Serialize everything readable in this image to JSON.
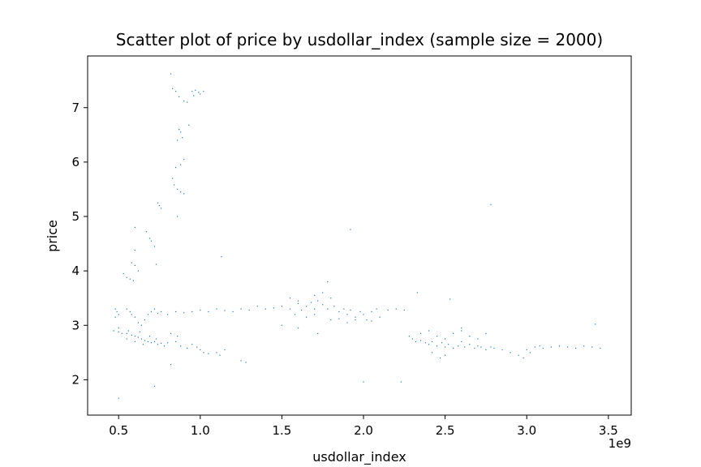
{
  "chart_data": {
    "type": "scatter",
    "title": "Scatter plot of price by usdollar_index (sample size = 2000)",
    "xlabel": "usdollar_index",
    "ylabel": "price",
    "x_scale_label": "1e9",
    "xlim": [
      0.31,
      3.64
    ],
    "ylim": [
      1.35,
      7.95
    ],
    "x_ticks": [
      0.5,
      1.0,
      1.5,
      2.0,
      2.5,
      3.0,
      3.5
    ],
    "x_tick_labels": [
      "0.5",
      "1.0",
      "1.5",
      "2.0",
      "2.5",
      "3.0",
      "3.5"
    ],
    "y_ticks": [
      2,
      3,
      4,
      5,
      6,
      7
    ],
    "y_tick_labels": [
      "2",
      "3",
      "4",
      "5",
      "6",
      "7"
    ],
    "grid": false,
    "point_color": "#1f77b4",
    "x_unit_note": "x values are in units of 1e9 (as the axis offset label shows)",
    "points": [
      [
        0.82,
        7.62
      ],
      [
        0.83,
        7.35
      ],
      [
        0.85,
        7.3
      ],
      [
        0.87,
        7.2
      ],
      [
        0.9,
        7.12
      ],
      [
        0.92,
        7.1
      ],
      [
        0.95,
        7.3
      ],
      [
        0.97,
        7.32
      ],
      [
        0.99,
        7.28
      ],
      [
        1.0,
        7.25
      ],
      [
        1.02,
        7.3
      ],
      [
        0.96,
        7.22
      ],
      [
        0.93,
        6.68
      ],
      [
        0.87,
        6.6
      ],
      [
        0.88,
        6.55
      ],
      [
        0.89,
        6.45
      ],
      [
        0.86,
        6.4
      ],
      [
        0.9,
        6.05
      ],
      [
        0.88,
        5.95
      ],
      [
        0.85,
        5.9
      ],
      [
        0.83,
        5.7
      ],
      [
        0.84,
        5.58
      ],
      [
        0.86,
        5.5
      ],
      [
        0.88,
        5.45
      ],
      [
        0.9,
        5.42
      ],
      [
        0.74,
        5.25
      ],
      [
        0.75,
        5.2
      ],
      [
        0.76,
        5.15
      ],
      [
        0.86,
        5.0
      ],
      [
        0.6,
        4.8
      ],
      [
        0.67,
        4.72
      ],
      [
        0.69,
        4.6
      ],
      [
        0.7,
        4.55
      ],
      [
        0.72,
        4.45
      ],
      [
        0.6,
        4.38
      ],
      [
        0.58,
        4.15
      ],
      [
        0.6,
        4.1
      ],
      [
        0.62,
        4.0
      ],
      [
        0.53,
        3.95
      ],
      [
        0.55,
        3.88
      ],
      [
        0.57,
        3.85
      ],
      [
        0.59,
        3.82
      ],
      [
        0.73,
        4.12
      ],
      [
        1.13,
        4.26
      ],
      [
        1.92,
        4.76
      ],
      [
        2.78,
        5.22
      ],
      [
        2.33,
        3.6
      ],
      [
        2.53,
        3.48
      ],
      [
        0.48,
        3.3
      ],
      [
        0.49,
        3.25
      ],
      [
        0.5,
        3.2
      ],
      [
        0.48,
        3.15
      ],
      [
        0.55,
        3.3
      ],
      [
        0.57,
        3.25
      ],
      [
        0.58,
        3.2
      ],
      [
        0.6,
        3.15
      ],
      [
        0.62,
        3.05
      ],
      [
        0.64,
        3.0
      ],
      [
        0.66,
        3.1
      ],
      [
        0.68,
        3.2
      ],
      [
        0.7,
        3.25
      ],
      [
        0.72,
        3.3
      ],
      [
        0.74,
        3.22
      ],
      [
        0.76,
        3.25
      ],
      [
        0.8,
        3.2
      ],
      [
        0.85,
        3.25
      ],
      [
        0.9,
        3.23
      ],
      [
        0.95,
        3.25
      ],
      [
        1.0,
        3.28
      ],
      [
        1.05,
        3.25
      ],
      [
        1.1,
        3.3
      ],
      [
        1.15,
        3.27
      ],
      [
        1.2,
        3.25
      ],
      [
        1.25,
        3.3
      ],
      [
        1.3,
        3.28
      ],
      [
        1.35,
        3.35
      ],
      [
        1.4,
        3.3
      ],
      [
        1.45,
        3.32
      ],
      [
        1.5,
        3.35
      ],
      [
        1.55,
        3.3
      ],
      [
        1.6,
        3.4
      ],
      [
        1.62,
        3.28
      ],
      [
        1.65,
        3.35
      ],
      [
        1.68,
        3.42
      ],
      [
        1.7,
        3.3
      ],
      [
        1.72,
        3.45
      ],
      [
        1.75,
        3.38
      ],
      [
        1.78,
        3.3
      ],
      [
        1.8,
        3.5
      ],
      [
        1.82,
        3.35
      ],
      [
        1.85,
        3.25
      ],
      [
        1.88,
        3.3
      ],
      [
        1.9,
        3.2
      ],
      [
        1.92,
        3.28
      ],
      [
        1.95,
        3.15
      ],
      [
        1.98,
        3.25
      ],
      [
        2.0,
        3.2
      ],
      [
        2.02,
        3.1
      ],
      [
        2.05,
        3.25
      ],
      [
        2.08,
        3.3
      ],
      [
        2.1,
        3.15
      ],
      [
        2.15,
        3.28
      ],
      [
        2.2,
        3.3
      ],
      [
        2.25,
        3.28
      ],
      [
        1.55,
        3.5
      ],
      [
        1.6,
        3.45
      ],
      [
        1.7,
        3.55
      ],
      [
        1.75,
        3.6
      ],
      [
        1.65,
        3.15
      ],
      [
        1.7,
        3.2
      ],
      [
        1.8,
        3.1
      ],
      [
        1.85,
        3.12
      ],
      [
        1.9,
        3.05
      ],
      [
        1.95,
        3.1
      ],
      [
        2.05,
        3.08
      ],
      [
        1.58,
        3.2
      ],
      [
        1.5,
        3.0
      ],
      [
        1.6,
        2.95
      ],
      [
        1.72,
        2.85
      ],
      [
        1.78,
        3.8
      ],
      [
        0.47,
        2.9
      ],
      [
        0.5,
        2.88
      ],
      [
        0.52,
        2.85
      ],
      [
        0.55,
        2.85
      ],
      [
        0.58,
        2.82
      ],
      [
        0.6,
        2.8
      ],
      [
        0.62,
        2.78
      ],
      [
        0.64,
        2.75
      ],
      [
        0.66,
        2.72
      ],
      [
        0.68,
        2.7
      ],
      [
        0.7,
        2.68
      ],
      [
        0.72,
        2.7
      ],
      [
        0.74,
        2.65
      ],
      [
        0.76,
        2.67
      ],
      [
        0.78,
        2.62
      ],
      [
        0.55,
        2.75
      ],
      [
        0.6,
        2.7
      ],
      [
        0.65,
        2.65
      ],
      [
        0.5,
        2.95
      ],
      [
        0.56,
        2.9
      ],
      [
        0.63,
        2.88
      ],
      [
        0.69,
        2.8
      ],
      [
        0.73,
        2.75
      ],
      [
        0.8,
        2.68
      ],
      [
        0.85,
        2.7
      ],
      [
        0.88,
        2.62
      ],
      [
        0.92,
        2.58
      ],
      [
        0.95,
        2.65
      ],
      [
        0.98,
        2.6
      ],
      [
        1.0,
        2.55
      ],
      [
        1.02,
        2.5
      ],
      [
        1.05,
        2.48
      ],
      [
        0.82,
        2.85
      ],
      [
        0.86,
        2.8
      ],
      [
        1.1,
        2.5
      ],
      [
        1.12,
        2.45
      ],
      [
        1.15,
        2.55
      ],
      [
        1.25,
        2.35
      ],
      [
        1.28,
        2.32
      ],
      [
        0.82,
        2.28
      ],
      [
        0.72,
        1.88
      ],
      [
        0.5,
        1.66
      ],
      [
        2.0,
        1.96
      ],
      [
        2.23,
        1.96
      ],
      [
        2.28,
        2.8
      ],
      [
        2.3,
        2.75
      ],
      [
        2.32,
        2.7
      ],
      [
        2.35,
        2.72
      ],
      [
        2.38,
        2.68
      ],
      [
        2.4,
        2.65
      ],
      [
        2.42,
        2.7
      ],
      [
        2.45,
        2.62
      ],
      [
        2.48,
        2.68
      ],
      [
        2.5,
        2.6
      ],
      [
        2.52,
        2.65
      ],
      [
        2.55,
        2.58
      ],
      [
        2.58,
        2.62
      ],
      [
        2.6,
        2.7
      ],
      [
        2.62,
        2.6
      ],
      [
        2.65,
        2.65
      ],
      [
        2.68,
        2.58
      ],
      [
        2.7,
        2.62
      ],
      [
        2.72,
        2.6
      ],
      [
        2.75,
        2.55
      ],
      [
        2.78,
        2.6
      ],
      [
        2.8,
        2.58
      ],
      [
        2.35,
        2.85
      ],
      [
        2.4,
        2.9
      ],
      [
        2.45,
        2.8
      ],
      [
        2.5,
        2.75
      ],
      [
        2.55,
        2.85
      ],
      [
        2.6,
        2.9
      ],
      [
        2.65,
        2.8
      ],
      [
        2.7,
        2.75
      ],
      [
        2.75,
        2.85
      ],
      [
        2.6,
        2.95
      ],
      [
        2.42,
        2.5
      ],
      [
        2.5,
        2.45
      ],
      [
        2.47,
        2.4
      ],
      [
        2.85,
        2.55
      ],
      [
        2.9,
        2.5
      ],
      [
        2.95,
        2.45
      ],
      [
        3.0,
        2.55
      ],
      [
        3.02,
        2.5
      ],
      [
        3.05,
        2.6
      ],
      [
        3.08,
        2.62
      ],
      [
        3.1,
        2.58
      ],
      [
        3.15,
        2.6
      ],
      [
        3.2,
        2.62
      ],
      [
        3.25,
        2.6
      ],
      [
        3.3,
        2.58
      ],
      [
        3.35,
        2.62
      ],
      [
        3.4,
        2.6
      ],
      [
        3.45,
        2.58
      ],
      [
        3.42,
        3.02
      ],
      [
        2.98,
        2.4
      ]
    ]
  }
}
